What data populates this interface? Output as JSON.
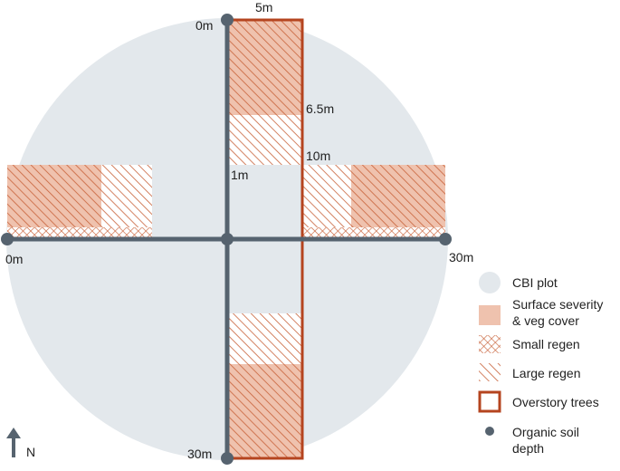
{
  "diagram": {
    "labels": {
      "top_0m": "0m",
      "top_5m": "5m",
      "mark_6_5m": "6.5m",
      "mark_10m": "10m",
      "mark_1m": "1m",
      "left_0m": "0m",
      "right_30m": "30m",
      "bottom_30m": "30m"
    },
    "north": {
      "label": "N",
      "icon": "north-arrow-icon"
    },
    "colors": {
      "plot_circle": "#e3e8ec",
      "surface_fill": "#efc2ae",
      "hatch": "#c8623a",
      "overstory_border": "#b5441f",
      "transect_line": "#56636f",
      "soil_point": "#56636f"
    }
  },
  "legend": [
    {
      "key": "cbi_plot",
      "label": "CBI plot",
      "icon": "circle-swatch-icon"
    },
    {
      "key": "surface",
      "label_line1": "Surface severity",
      "label_line2": "& veg cover",
      "icon": "filled-square-swatch-icon"
    },
    {
      "key": "small_regen",
      "label": "Small regen",
      "icon": "crosshatch-swatch-icon"
    },
    {
      "key": "large_regen",
      "label": "Large regen",
      "icon": "diagonal-hatch-swatch-icon"
    },
    {
      "key": "overstory",
      "label": "Overstory trees",
      "icon": "outlined-square-swatch-icon"
    },
    {
      "key": "soil",
      "label_line1": "Organic soil",
      "label_line2": "depth",
      "icon": "dot-swatch-icon"
    }
  ]
}
